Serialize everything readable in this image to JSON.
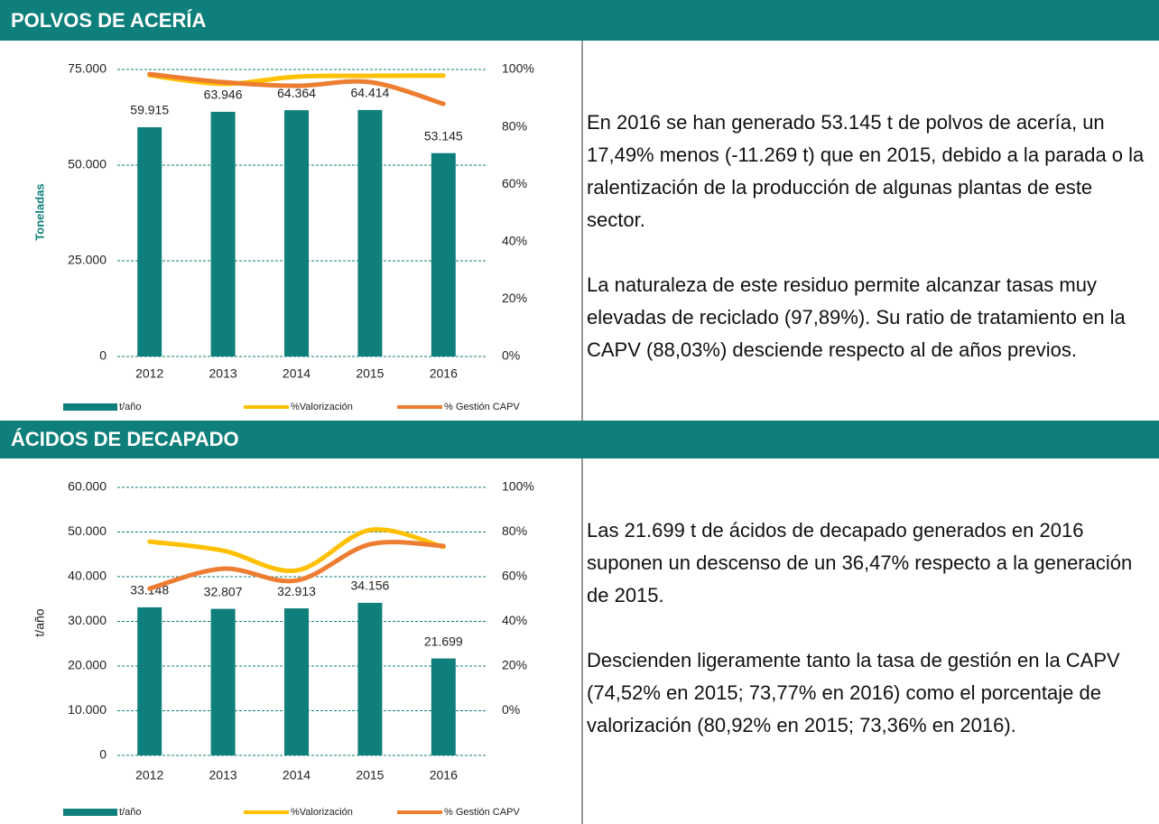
{
  "sections": [
    {
      "title": "POLVOS DE ACERÍA",
      "paragraphs": [
        "En 2016 se han generado 53.145 t de polvos de acería, un 17,49% menos (-11.269 t) que en 2015, debido a la parada o la ralentización de la producción de algunas plantas de este sector.",
        "La naturaleza de este residuo permite alcanzar tasas muy elevadas de reciclado (97,89%). Su ratio de tratamiento en la CAPV (88,03%) desciende respecto al de años previos."
      ]
    },
    {
      "title": "ÁCIDOS DE DECAPADO",
      "paragraphs": [
        "Las 21.699 t de ácidos de decapado generados en 2016 suponen un descenso de un 36,47% respecto a la generación de 2015.",
        "Descienden ligeramente tanto la tasa de gestión en la CAPV (74,52% en 2015; 73,77% en 2016) como el porcentaje de valorización (80,92% en 2015; 73,36% en 2016)."
      ]
    }
  ],
  "chart_data": [
    {
      "type": "bar",
      "ylabel": "Toneladas",
      "categories": [
        "2012",
        "2013",
        "2014",
        "2015",
        "2016"
      ],
      "series": [
        {
          "name": "t/año",
          "color": "#0e7f7a",
          "values": [
            59915,
            63946,
            64364,
            64414,
            53145
          ],
          "value_labels": [
            "59.915",
            "63.946",
            "64.364",
            "64.414",
            "53.145"
          ]
        },
        {
          "name": "%Valorización",
          "type": "line",
          "axis": "y2",
          "color": "#ffc000",
          "values": [
            98,
            95,
            97.5,
            97.8,
            97.89
          ]
        },
        {
          "name": "% Gestión CAPV",
          "type": "line",
          "axis": "y2",
          "color": "#ed7d31",
          "values": [
            98.4,
            95.6,
            94.3,
            95.6,
            88.03
          ]
        }
      ],
      "ylim": [
        0,
        75000
      ],
      "yticks": [
        0,
        {
          "value": 25000,
          "label": "25.000"
        },
        {
          "value": 50000,
          "label": "50.000"
        },
        {
          "value": 75000,
          "label": "75.000"
        }
      ],
      "y2lim": [
        0,
        100
      ],
      "y2ticks": [
        {
          "value": 0,
          "label": "0%"
        },
        {
          "value": 20,
          "label": "20%"
        },
        {
          "value": 40,
          "label": "40%"
        },
        {
          "value": 60,
          "label": "60%"
        },
        {
          "value": 80,
          "label": "80%"
        },
        {
          "value": 100,
          "label": "100%"
        }
      ],
      "grid": true
    },
    {
      "type": "bar",
      "ylabel": "t/año",
      "categories": [
        "2012",
        "2013",
        "2014",
        "2015",
        "2016"
      ],
      "series": [
        {
          "name": "t/año",
          "color": "#0e7f7a",
          "values": [
            33148,
            32807,
            32913,
            34156,
            21699
          ],
          "value_labels": [
            "33.148",
            "32.807",
            "32.913",
            "34.156",
            "21.699"
          ]
        },
        {
          "name": "%Valorización",
          "type": "line",
          "axis": "y2",
          "color": "#ffc000",
          "values": [
            75.7,
            71.7,
            62.8,
            80.92,
            73.36
          ]
        },
        {
          "name": "% Gestión CAPV",
          "type": "line",
          "axis": "y2",
          "color": "#ed7d31",
          "values": [
            54.7,
            63.6,
            58.3,
            74.52,
            73.77
          ]
        }
      ],
      "ylim": [
        0,
        60000
      ],
      "yticks": [
        0,
        {
          "value": 10000,
          "label": "10.000"
        },
        {
          "value": 20000,
          "label": "20.000"
        },
        {
          "value": 30000,
          "label": "30.000"
        },
        {
          "value": 40000,
          "label": "40.000"
        },
        {
          "value": 50000,
          "label": "50.000"
        },
        {
          "value": 60000,
          "label": "60.000"
        }
      ],
      "y2lim": [
        -20,
        100
      ],
      "y2ticks": [
        {
          "value": 0,
          "label": "0%"
        },
        {
          "value": 20,
          "label": "20%"
        },
        {
          "value": 40,
          "label": "40%"
        },
        {
          "value": 60,
          "label": "60%"
        },
        {
          "value": 80,
          "label": "80%"
        },
        {
          "value": 100,
          "label": "100%"
        }
      ],
      "grid": true
    }
  ]
}
